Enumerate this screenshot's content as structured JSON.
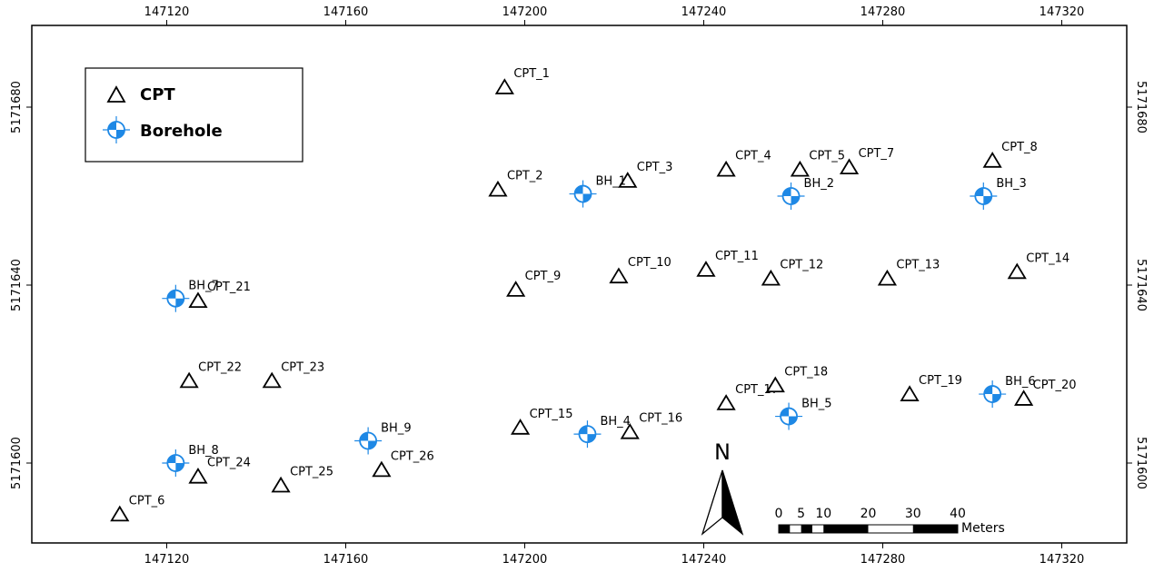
{
  "colors": {
    "borehole": "#1E88E5",
    "ink": "#000000",
    "frame": "#000000",
    "background": "#ffffff"
  },
  "icons": {
    "cpt": "triangle-icon",
    "borehole": "quartered-circle-crosshair-icon",
    "north": "north-arrow-icon"
  },
  "x_ticks": [
    "147120",
    "147160",
    "147200",
    "147240",
    "147280",
    "147320"
  ],
  "y_ticks": [
    "5171680",
    "5171640",
    "5171600"
  ],
  "legend": {
    "cpt_label": "CPT",
    "borehole_label": "Borehole"
  },
  "north_label": "N",
  "scale_bar": {
    "labels": [
      "0",
      "5",
      "10",
      "20",
      "30",
      "40"
    ],
    "units": "Meters"
  },
  "cpts": [
    {
      "label": "CPT_1",
      "e": 147195.5,
      "n": 5171684.5
    },
    {
      "label": "CPT_2",
      "e": 147194.0,
      "n": 5171661.5
    },
    {
      "label": "CPT_3",
      "e": 147223.0,
      "n": 5171663.5
    },
    {
      "label": "CPT_4",
      "e": 147245.0,
      "n": 5171666.0
    },
    {
      "label": "CPT_5",
      "e": 147261.5,
      "n": 5171666.0
    },
    {
      "label": "CPT_6",
      "e": 147109.5,
      "n": 5171588.5
    },
    {
      "label": "CPT_7",
      "e": 147272.5,
      "n": 5171666.5
    },
    {
      "label": "CPT_8",
      "e": 147304.5,
      "n": 5171668.0
    },
    {
      "label": "CPT_9",
      "e": 147198.0,
      "n": 5171639.0
    },
    {
      "label": "CPT_10",
      "e": 147221.0,
      "n": 5171642.0
    },
    {
      "label": "CPT_11",
      "e": 147240.5,
      "n": 5171643.5
    },
    {
      "label": "CPT_12",
      "e": 147255.0,
      "n": 5171641.5
    },
    {
      "label": "CPT_13",
      "e": 147281.0,
      "n": 5171641.5
    },
    {
      "label": "CPT_14",
      "e": 147310.0,
      "n": 5171643.0
    },
    {
      "label": "CPT_15",
      "e": 147199.0,
      "n": 5171608.0
    },
    {
      "label": "CPT_16",
      "e": 147223.5,
      "n": 5171607.0
    },
    {
      "label": "CPT_17",
      "e": 147245.0,
      "n": 5171613.5
    },
    {
      "label": "CPT_18",
      "e": 147256.0,
      "n": 5171617.5
    },
    {
      "label": "CPT_19",
      "e": 147286.0,
      "n": 5171615.5
    },
    {
      "label": "CPT_20",
      "e": 147311.5,
      "n": 5171614.5
    },
    {
      "label": "CPT_21",
      "e": 147127.0,
      "n": 5171636.5
    },
    {
      "label": "CPT_22",
      "e": 147125.0,
      "n": 5171618.5
    },
    {
      "label": "CPT_23",
      "e": 147143.5,
      "n": 5171618.5
    },
    {
      "label": "CPT_24",
      "e": 147127.0,
      "n": 5171597.0
    },
    {
      "label": "CPT_25",
      "e": 147145.5,
      "n": 5171595.0
    },
    {
      "label": "CPT_26",
      "e": 147168.0,
      "n": 5171598.5
    }
  ],
  "boreholes": [
    {
      "label": "BH_1",
      "e": 147213.0,
      "n": 5171660.5
    },
    {
      "label": "BH_2",
      "e": 147259.5,
      "n": 5171660.0
    },
    {
      "label": "BH_3",
      "e": 147302.5,
      "n": 5171660.0
    },
    {
      "label": "BH_4",
      "e": 147214.0,
      "n": 5171606.5
    },
    {
      "label": "BH_5",
      "e": 147259.0,
      "n": 5171610.5
    },
    {
      "label": "BH_6",
      "e": 147304.5,
      "n": 5171615.5
    },
    {
      "label": "BH_7",
      "e": 147122.0,
      "n": 5171637.0
    },
    {
      "label": "BH_8",
      "e": 147122.0,
      "n": 5171600.0
    },
    {
      "label": "BH_9",
      "e": 147165.0,
      "n": 5171605.0
    }
  ]
}
